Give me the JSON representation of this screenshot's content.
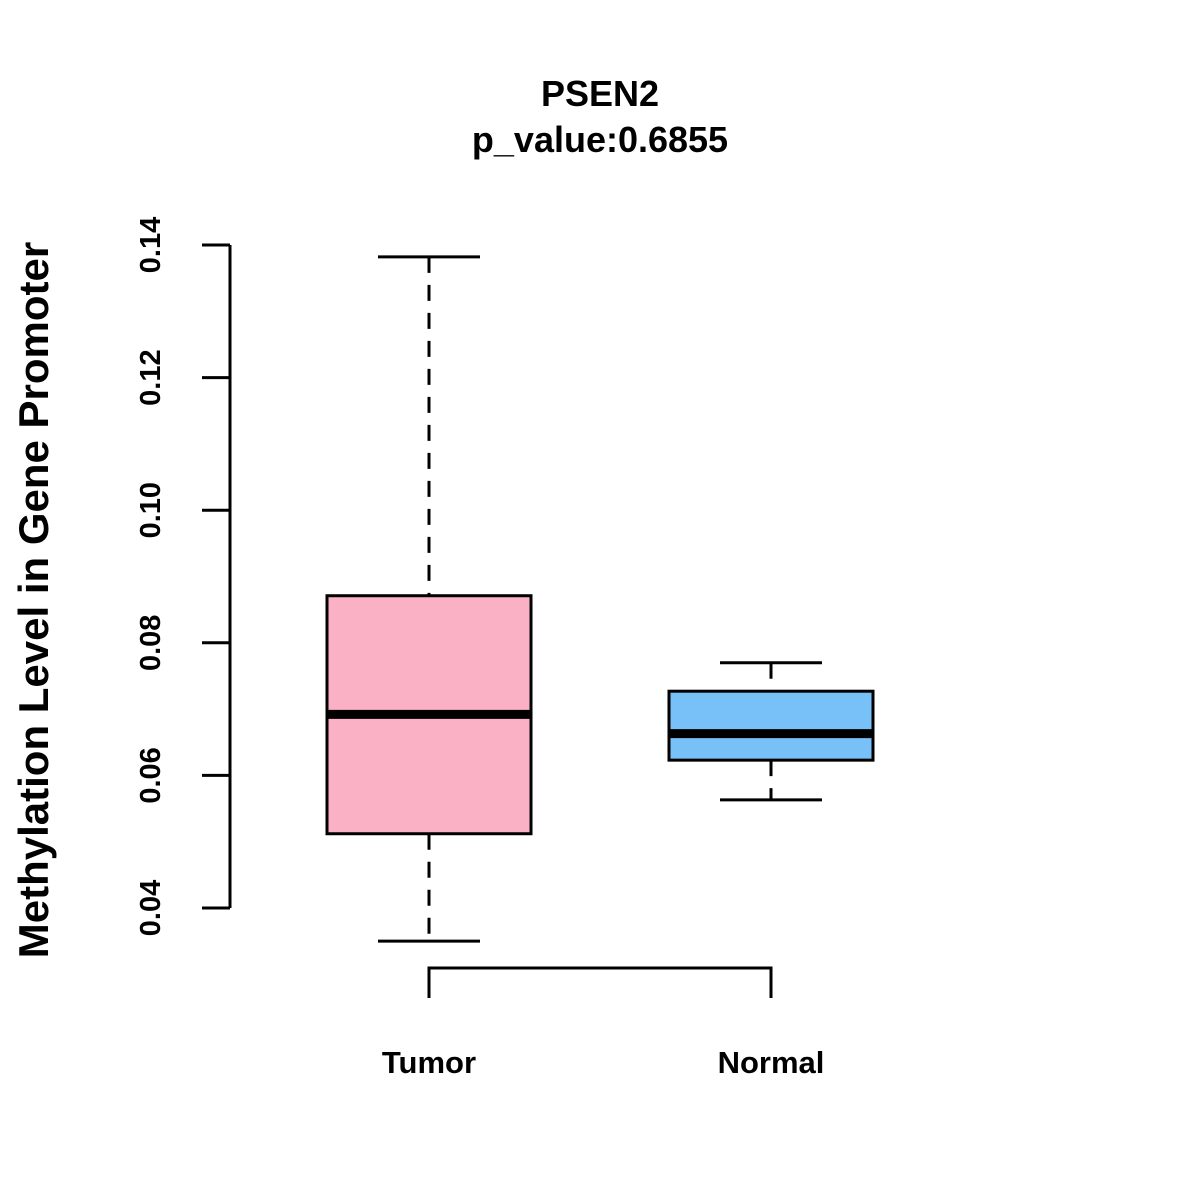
{
  "chart_data": {
    "type": "boxplot",
    "title": "PSEN2",
    "subtitle": "p_value:0.6855",
    "ylabel": "Methylation Level in Gene Promoter",
    "xlabel": "",
    "ylim": [
      0.04,
      0.14
    ],
    "yticks": [
      0.04,
      0.06,
      0.08,
      0.1,
      0.12,
      0.14
    ],
    "ytick_labels": [
      "0.04",
      "0.06",
      "0.08",
      "0.10",
      "0.12",
      "0.14"
    ],
    "categories": [
      "Tumor",
      "Normal"
    ],
    "series": [
      {
        "name": "Tumor",
        "min": 0.035,
        "q1": 0.0512,
        "median": 0.0692,
        "q3": 0.0871,
        "max": 0.1382,
        "color": "#FBB1C5"
      },
      {
        "name": "Normal",
        "min": 0.0563,
        "q1": 0.0623,
        "median": 0.0663,
        "q3": 0.0727,
        "max": 0.077,
        "color": "#78C0F8"
      }
    ],
    "comparison_bracket": [
      "Tumor",
      "Normal"
    ]
  }
}
